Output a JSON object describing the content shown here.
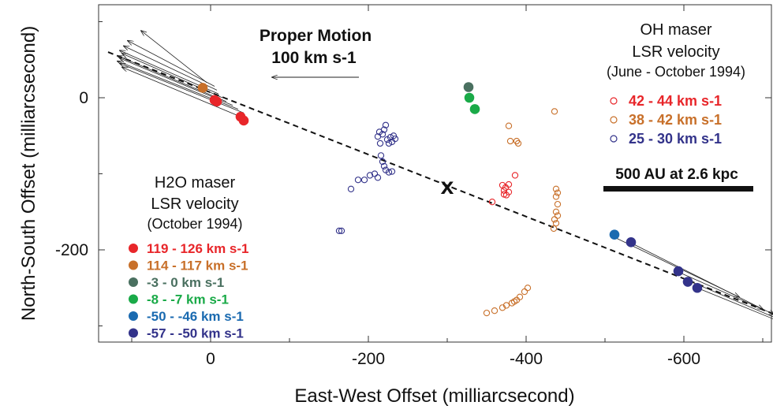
{
  "chart_data": {
    "type": "scatter",
    "xlabel": "East-West Offset (milliarcsecond)",
    "ylabel": "North-South Offset (milliarcsecond)",
    "xlim": [
      130,
      -740
    ],
    "ylim": [
      -325,
      120
    ],
    "xticks": [
      0,
      -200,
      -400,
      -600
    ],
    "xtick_labels": [
      "0",
      "-200",
      "-400",
      "-600"
    ],
    "yticks": [
      0,
      -200
    ],
    "ytick_labels": [
      "0",
      "-200"
    ],
    "proper_motion": {
      "title": "Proper Motion",
      "scale_text": "100 km s-1",
      "scale_kms": 100
    },
    "h2o_legend": {
      "title_line1": "H2O maser",
      "title_line2": "LSR velocity",
      "title_line3": "(October 1994)"
    },
    "oh_legend": {
      "title_line1": "OH maser",
      "title_line2": "LSR velocity",
      "title_line3": "(June - October 1994)"
    },
    "scale_bar_label": "500 AU at 2.6 kpc",
    "center_marker": {
      "label": "x",
      "x": -300,
      "y": -115
    },
    "dashed_line": {
      "x": [
        130,
        -740
      ],
      "y": [
        60,
        -295
      ]
    },
    "h2o_series": [
      {
        "name": "119 - 126 km s-1",
        "color": "#e8262a",
        "points": [
          [
            -5,
            -3
          ],
          [
            -8,
            -5
          ],
          [
            -38,
            -25
          ],
          [
            -42,
            -30
          ]
        ]
      },
      {
        "name": "114 - 117 km s-1",
        "color": "#c8702a",
        "points": [
          [
            10,
            13
          ]
        ]
      },
      {
        "name": "-3 - 0 km s-1",
        "color": "#4a7060",
        "points": [
          [
            -327,
            14
          ]
        ]
      },
      {
        "name": "-8 - -7 km s-1",
        "color": "#1aaa48",
        "points": [
          [
            -328,
            0
          ],
          [
            -335,
            -15
          ]
        ]
      },
      {
        "name": "-50 - -46 km s-1",
        "color": "#1a6ab0",
        "points": [
          [
            -512,
            -180
          ]
        ]
      },
      {
        "name": "-57 - -50 km s-1",
        "color": "#33338a",
        "points": [
          [
            -533,
            -190
          ],
          [
            -593,
            -228
          ],
          [
            -605,
            -242
          ],
          [
            -617,
            -250
          ]
        ]
      }
    ],
    "oh_series": [
      {
        "name": "42 - 44 km s-1",
        "color": "#e8262a",
        "points": [
          [
            -357,
            -137
          ],
          [
            -370,
            -115
          ],
          [
            -372,
            -122
          ],
          [
            -375,
            -128
          ],
          [
            -378,
            -124
          ],
          [
            -374,
            -118
          ],
          [
            -378,
            -114
          ],
          [
            -386,
            -102
          ],
          [
            -372,
            -127
          ]
        ]
      },
      {
        "name": "38 - 42 km s-1",
        "color": "#c8702a",
        "points": [
          [
            -378,
            -37
          ],
          [
            -380,
            -57
          ],
          [
            -388,
            -57
          ],
          [
            -390,
            -60
          ],
          [
            -436,
            -18
          ],
          [
            -438,
            -120
          ],
          [
            -440,
            -125
          ],
          [
            -438,
            -130
          ],
          [
            -440,
            -140
          ],
          [
            -438,
            -150
          ],
          [
            -440,
            -155
          ],
          [
            -436,
            -160
          ],
          [
            -438,
            -165
          ],
          [
            -435,
            -172
          ],
          [
            -350,
            -283
          ],
          [
            -360,
            -280
          ],
          [
            -370,
            -276
          ],
          [
            -375,
            -273
          ],
          [
            -382,
            -270
          ],
          [
            -388,
            -266
          ],
          [
            -392,
            -262
          ],
          [
            -398,
            -255
          ],
          [
            -402,
            -250
          ],
          [
            -385,
            -268
          ]
        ]
      },
      {
        "name": "25 - 30 km s-1",
        "color": "#33338a",
        "points": [
          [
            -163,
            -175
          ],
          [
            -166,
            -175
          ],
          [
            -178,
            -120
          ],
          [
            -187,
            -108
          ],
          [
            -195,
            -108
          ],
          [
            -202,
            -102
          ],
          [
            -208,
            -100
          ],
          [
            -212,
            -105
          ],
          [
            -215,
            -60
          ],
          [
            -218,
            -48
          ],
          [
            -220,
            -42
          ],
          [
            -222,
            -36
          ],
          [
            -224,
            -55
          ],
          [
            -226,
            -60
          ],
          [
            -228,
            -52
          ],
          [
            -230,
            -58
          ],
          [
            -232,
            -50
          ],
          [
            -234,
            -54
          ],
          [
            -216,
            -76
          ],
          [
            -218,
            -84
          ],
          [
            -220,
            -90
          ],
          [
            -222,
            -95
          ],
          [
            -226,
            -98
          ],
          [
            -230,
            -97
          ],
          [
            -214,
            -45
          ],
          [
            -212,
            -51
          ]
        ]
      }
    ],
    "vectors": {
      "h2o_west_group": [
        {
          "from": [
            5,
            20
          ],
          "to": [
            88,
            88
          ]
        },
        {
          "from": [
            -5,
            15
          ],
          "to": [
            105,
            75
          ]
        },
        {
          "from": [
            -8,
            10
          ],
          "to": [
            110,
            68
          ]
        },
        {
          "from": [
            -10,
            5
          ],
          "to": [
            115,
            62
          ]
        },
        {
          "from": [
            -15,
            0
          ],
          "to": [
            112,
            58
          ]
        },
        {
          "from": [
            -20,
            -5
          ],
          "to": [
            118,
            55
          ]
        },
        {
          "from": [
            -28,
            -10
          ],
          "to": [
            115,
            52
          ]
        },
        {
          "from": [
            -35,
            -15
          ],
          "to": [
            118,
            48
          ]
        },
        {
          "from": [
            -42,
            -20
          ],
          "to": [
            115,
            45
          ]
        },
        {
          "from": [
            -45,
            -28
          ],
          "to": [
            112,
            40
          ]
        }
      ],
      "h2o_east_group": [
        {
          "from": [
            -515,
            -185
          ],
          "to": [
            -670,
            -262
          ]
        },
        {
          "from": [
            -535,
            -192
          ],
          "to": [
            -700,
            -278
          ]
        },
        {
          "from": [
            -595,
            -230
          ],
          "to": [
            -715,
            -285
          ]
        },
        {
          "from": [
            -605,
            -240
          ],
          "to": [
            -722,
            -292
          ]
        },
        {
          "from": [
            -617,
            -250
          ],
          "to": [
            -735,
            -300
          ]
        }
      ]
    }
  }
}
